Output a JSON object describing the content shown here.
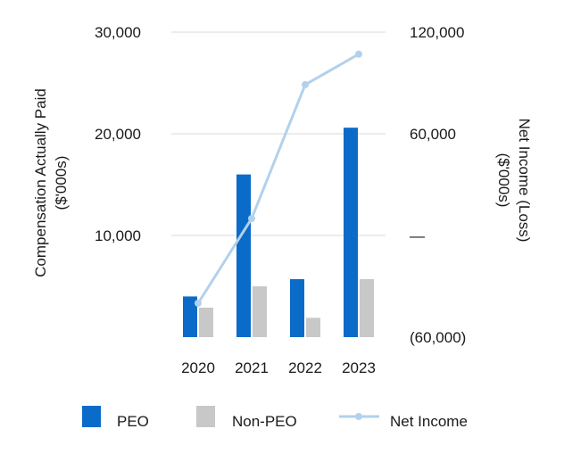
{
  "chart_data": {
    "type": "bar",
    "categories": [
      "2020",
      "2021",
      "2022",
      "2023"
    ],
    "series": [
      {
        "name": "PEO",
        "axis": "left",
        "kind": "bar",
        "color": "#0a6bc9",
        "values": [
          4000,
          16000,
          5700,
          20600
        ]
      },
      {
        "name": "Non-PEO",
        "axis": "left",
        "kind": "bar",
        "color": "#c8c8c8",
        "values": [
          2900,
          5000,
          1900,
          5700
        ]
      },
      {
        "name": "Net Income",
        "axis": "right",
        "kind": "line",
        "color": "#b2d1ec",
        "values": [
          -40000,
          10000,
          89000,
          107000
        ]
      }
    ],
    "ylabel_left_lines": [
      "Compensation Actually Paid",
      "($'000s)"
    ],
    "ylabel_right_lines": [
      "Net Income (Loss)",
      "($'000s)"
    ],
    "ylim_left": [
      0,
      30000
    ],
    "ylim_right": [
      -60000,
      120000
    ],
    "left_ticks": [
      {
        "value": 10000,
        "label": "10,000"
      },
      {
        "value": 20000,
        "label": "20,000"
      },
      {
        "value": 30000,
        "label": "30,000"
      }
    ],
    "right_ticks": [
      {
        "value": -60000,
        "label": "(60,000)"
      },
      {
        "value": 0,
        "label": "—"
      },
      {
        "value": 60000,
        "label": "60,000"
      },
      {
        "value": 120000,
        "label": "120,000"
      }
    ],
    "gridlines": true,
    "legend_position": "bottom"
  }
}
